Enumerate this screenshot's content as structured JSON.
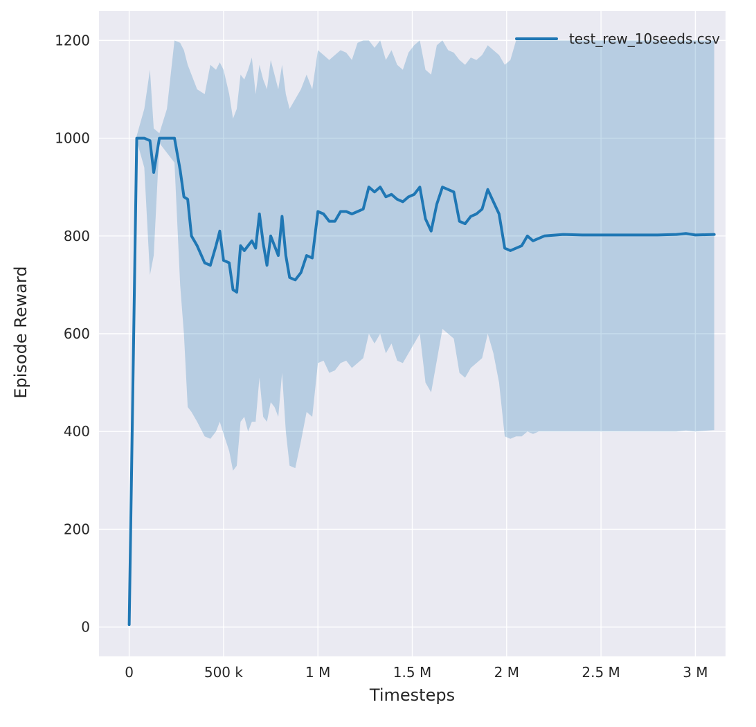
{
  "figure": {
    "legend": {
      "label": "test_rew_10seeds.csv"
    }
  },
  "colors": {
    "figure_bg": "#ffffff",
    "plot_bg": "#eaeaf2",
    "grid": "#ffffff",
    "tick_label": "#262626",
    "line": "#1f77b4",
    "band": "#1f77b4"
  },
  "chart_data": {
    "type": "line",
    "title": "",
    "xlabel": "Timesteps",
    "ylabel": "Episode Reward",
    "grid": true,
    "legend_position": "upper right",
    "xlim": [
      -160000,
      3160000
    ],
    "ylim": [
      -60,
      1260
    ],
    "x_ticks": [
      {
        "value": 0,
        "label": "0"
      },
      {
        "value": 500000,
        "label": "500 k"
      },
      {
        "value": 1000000,
        "label": "1 M"
      },
      {
        "value": 1500000,
        "label": "1.5 M"
      },
      {
        "value": 2000000,
        "label": "2 M"
      },
      {
        "value": 2500000,
        "label": "2.5 M"
      },
      {
        "value": 3000000,
        "label": "3 M"
      }
    ],
    "y_ticks": [
      {
        "value": 0,
        "label": "0"
      },
      {
        "value": 200,
        "label": "200"
      },
      {
        "value": 400,
        "label": "400"
      },
      {
        "value": 600,
        "label": "600"
      },
      {
        "value": 800,
        "label": "800"
      },
      {
        "value": 1000,
        "label": "1000"
      },
      {
        "value": 1200,
        "label": "1200"
      }
    ],
    "series": [
      {
        "name": "test_rew_10seeds.csv",
        "color": "#1f77b4",
        "band_opacity": 0.25,
        "x": [
          0,
          40000,
          80000,
          110000,
          130000,
          160000,
          200000,
          240000,
          270000,
          290000,
          310000,
          330000,
          360000,
          400000,
          430000,
          460000,
          480000,
          500000,
          530000,
          550000,
          570000,
          590000,
          610000,
          630000,
          650000,
          670000,
          690000,
          710000,
          730000,
          750000,
          770000,
          790000,
          810000,
          830000,
          850000,
          880000,
          910000,
          940000,
          970000,
          1000000,
          1030000,
          1060000,
          1090000,
          1120000,
          1150000,
          1180000,
          1210000,
          1240000,
          1270000,
          1300000,
          1330000,
          1360000,
          1390000,
          1420000,
          1450000,
          1480000,
          1510000,
          1540000,
          1570000,
          1600000,
          1630000,
          1660000,
          1690000,
          1720000,
          1750000,
          1780000,
          1810000,
          1840000,
          1870000,
          1900000,
          1930000,
          1960000,
          1990000,
          2020000,
          2050000,
          2080000,
          2110000,
          2140000,
          2170000,
          2200000,
          2300000,
          2400000,
          2500000,
          2600000,
          2700000,
          2800000,
          2900000,
          2950000,
          3000000,
          3100000
        ],
        "mean": [
          5,
          1000,
          1000,
          995,
          930,
          1000,
          1000,
          1000,
          935,
          880,
          875,
          800,
          780,
          745,
          740,
          780,
          810,
          750,
          745,
          690,
          685,
          780,
          770,
          780,
          790,
          775,
          845,
          785,
          740,
          800,
          780,
          760,
          840,
          760,
          715,
          710,
          725,
          760,
          755,
          850,
          845,
          830,
          830,
          850,
          850,
          845,
          850,
          855,
          900,
          890,
          900,
          880,
          885,
          875,
          870,
          880,
          885,
          900,
          835,
          810,
          865,
          900,
          895,
          890,
          830,
          825,
          840,
          845,
          855,
          895,
          870,
          845,
          775,
          770,
          775,
          780,
          800,
          790,
          795,
          800,
          803,
          802,
          802,
          802,
          802,
          802,
          803,
          805,
          802,
          803
        ],
        "lower": [
          4,
          995,
          940,
          720,
          760,
          990,
          970,
          950,
          700,
          600,
          450,
          440,
          420,
          390,
          385,
          400,
          420,
          395,
          360,
          320,
          330,
          420,
          430,
          400,
          420,
          420,
          510,
          430,
          420,
          460,
          450,
          430,
          520,
          400,
          330,
          325,
          380,
          440,
          430,
          540,
          545,
          520,
          525,
          540,
          545,
          530,
          540,
          550,
          600,
          580,
          600,
          560,
          580,
          545,
          540,
          560,
          580,
          600,
          500,
          480,
          545,
          610,
          600,
          590,
          520,
          510,
          530,
          540,
          550,
          600,
          560,
          500,
          390,
          385,
          390,
          390,
          400,
          395,
          400,
          400,
          400,
          400,
          400,
          400,
          400,
          400,
          400,
          402,
          400,
          403
        ],
        "upper": [
          6,
          1005,
          1060,
          1140,
          1020,
          1010,
          1060,
          1200,
          1195,
          1180,
          1150,
          1130,
          1100,
          1090,
          1150,
          1140,
          1155,
          1140,
          1090,
          1040,
          1060,
          1130,
          1120,
          1140,
          1165,
          1090,
          1150,
          1120,
          1100,
          1160,
          1130,
          1100,
          1150,
          1090,
          1060,
          1080,
          1100,
          1130,
          1100,
          1180,
          1170,
          1160,
          1170,
          1180,
          1175,
          1160,
          1195,
          1200,
          1200,
          1185,
          1200,
          1160,
          1180,
          1150,
          1140,
          1175,
          1190,
          1200,
          1140,
          1130,
          1190,
          1200,
          1180,
          1175,
          1160,
          1150,
          1165,
          1160,
          1170,
          1190,
          1180,
          1170,
          1150,
          1160,
          1200,
          1200,
          1200,
          1200,
          1200,
          1200,
          1200,
          1200,
          1200,
          1200,
          1200,
          1200,
          1200,
          1200,
          1200,
          1200
        ]
      }
    ]
  }
}
